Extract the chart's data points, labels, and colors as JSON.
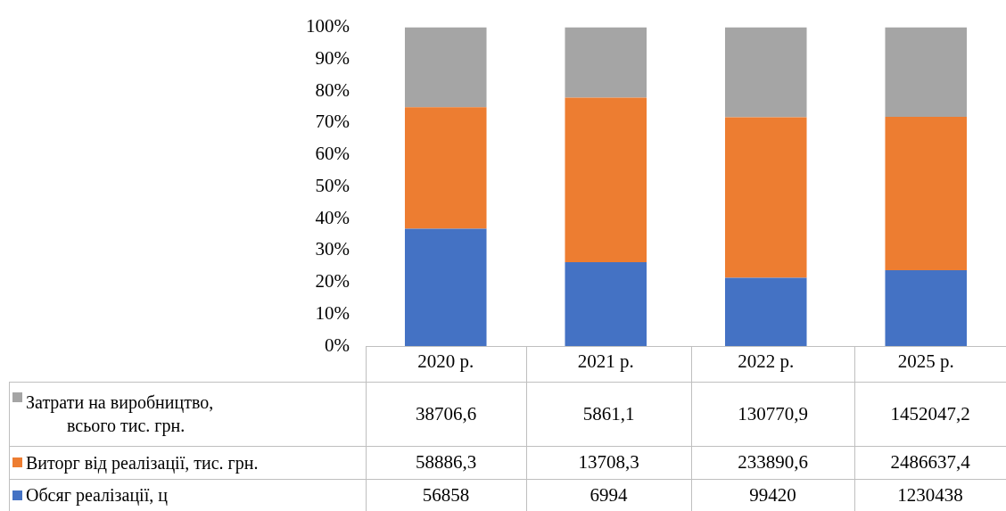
{
  "chart_data": {
    "type": "bar",
    "stacked": true,
    "categories": [
      "2020 р.",
      "2021 р.",
      "2022 р.",
      "2025 р."
    ],
    "series": [
      {
        "name": "Обсяг реалізації,  ц",
        "color": "#4472c4",
        "values": [
          36.8,
          26.3,
          21.4,
          23.8
        ]
      },
      {
        "name": "Виторг від реалізації,  тис. грн.",
        "color": "#ed7d31",
        "values": [
          38.1,
          51.6,
          50.4,
          48.1
        ]
      },
      {
        "name": "Затрати на виробництво,\nвсього тис. грн.",
        "color": "#a5a5a5",
        "values": [
          25.1,
          22.1,
          28.2,
          28.1
        ]
      }
    ],
    "ylim": [
      0,
      100
    ],
    "yticks": [
      {
        "value": 0,
        "label": "0%"
      },
      {
        "value": 10,
        "label": "10%"
      },
      {
        "value": 20,
        "label": "20%"
      },
      {
        "value": 30,
        "label": "30%"
      },
      {
        "value": 40,
        "label": "40%"
      },
      {
        "value": 50,
        "label": "50%"
      },
      {
        "value": 60,
        "label": "60%"
      },
      {
        "value": 70,
        "label": "70%"
      },
      {
        "value": 80,
        "label": "80%"
      },
      {
        "value": 90,
        "label": "90%"
      },
      {
        "value": 100,
        "label": "100%"
      }
    ],
    "grid": false,
    "legend": "bottom",
    "annotations": [
      "38706,6",
      "5861,1",
      "130770,9",
      "1452047,2",
      "58886,3",
      "13708,3",
      "233890,6",
      "2486637,4",
      "56858",
      "6994",
      "99420",
      "1230438"
    ]
  }
}
